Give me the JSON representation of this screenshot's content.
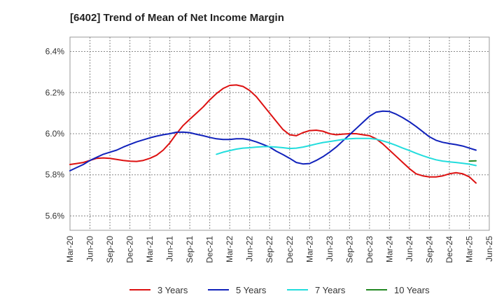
{
  "chart_data": {
    "type": "line",
    "title": "[6402]  Trend of Mean of Net Income Margin",
    "xlabel": "",
    "ylabel": "",
    "x_ticks": [
      "Mar-20",
      "Jun-20",
      "Sep-20",
      "Dec-20",
      "Mar-21",
      "Jun-21",
      "Sep-21",
      "Dec-21",
      "Mar-22",
      "Jun-22",
      "Sep-22",
      "Dec-22",
      "Mar-23",
      "Jun-23",
      "Sep-23",
      "Dec-23",
      "Mar-24",
      "Jun-24",
      "Sep-24",
      "Dec-24",
      "Mar-25",
      "Jun-25"
    ],
    "y_ticks": [
      "5.6%",
      "5.8%",
      "6.0%",
      "6.2%",
      "6.4%"
    ],
    "y_tick_values": [
      5.6,
      5.8,
      6.0,
      6.2,
      6.4
    ],
    "ylim": [
      5.53,
      6.47
    ],
    "grid": true,
    "legend_position": "bottom",
    "series": [
      {
        "name": "3 Years",
        "color": "#dd1111",
        "points": [
          [
            "Mar-20",
            5.85
          ],
          [
            "Apr-20",
            5.855
          ],
          [
            "May-20",
            5.86
          ],
          [
            "Jun-20",
            5.87
          ],
          [
            "Jul-20",
            5.88
          ],
          [
            "Aug-20",
            5.882
          ],
          [
            "Sep-20",
            5.88
          ],
          [
            "Oct-20",
            5.875
          ],
          [
            "Nov-20",
            5.87
          ],
          [
            "Dec-20",
            5.866
          ],
          [
            "Jan-21",
            5.865
          ],
          [
            "Feb-21",
            5.87
          ],
          [
            "Mar-21",
            5.88
          ],
          [
            "Apr-21",
            5.895
          ],
          [
            "May-21",
            5.92
          ],
          [
            "Jun-21",
            5.955
          ],
          [
            "Jul-21",
            6.0
          ],
          [
            "Aug-21",
            6.04
          ],
          [
            "Sep-21",
            6.07
          ],
          [
            "Oct-21",
            6.1
          ],
          [
            "Nov-21",
            6.13
          ],
          [
            "Dec-21",
            6.165
          ],
          [
            "Jan-22",
            6.195
          ],
          [
            "Feb-22",
            6.22
          ],
          [
            "Mar-22",
            6.235
          ],
          [
            "Apr-22",
            6.237
          ],
          [
            "May-22",
            6.23
          ],
          [
            "Jun-22",
            6.21
          ],
          [
            "Jul-22",
            6.18
          ],
          [
            "Aug-22",
            6.14
          ],
          [
            "Sep-22",
            6.1
          ],
          [
            "Oct-22",
            6.06
          ],
          [
            "Nov-22",
            6.02
          ],
          [
            "Dec-22",
            5.995
          ],
          [
            "Jan-23",
            5.99
          ],
          [
            "Feb-23",
            6.005
          ],
          [
            "Mar-23",
            6.015
          ],
          [
            "Apr-23",
            6.017
          ],
          [
            "May-23",
            6.012
          ],
          [
            "Jun-23",
            6.0
          ],
          [
            "Jul-23",
            5.995
          ],
          [
            "Aug-23",
            5.998
          ],
          [
            "Sep-23",
            6.0
          ],
          [
            "Oct-23",
            6.0
          ],
          [
            "Nov-23",
            5.995
          ],
          [
            "Dec-23",
            5.99
          ],
          [
            "Jan-24",
            5.975
          ],
          [
            "Feb-24",
            5.95
          ],
          [
            "Mar-24",
            5.92
          ],
          [
            "Apr-24",
            5.89
          ],
          [
            "May-24",
            5.86
          ],
          [
            "Jun-24",
            5.83
          ],
          [
            "Jul-24",
            5.805
          ],
          [
            "Aug-24",
            5.795
          ],
          [
            "Sep-24",
            5.79
          ],
          [
            "Oct-24",
            5.79
          ],
          [
            "Nov-24",
            5.795
          ],
          [
            "Dec-24",
            5.805
          ],
          [
            "Jan-25",
            5.81
          ],
          [
            "Feb-25",
            5.805
          ],
          [
            "Mar-25",
            5.79
          ],
          [
            "Apr-25",
            5.76
          ]
        ]
      },
      {
        "name": "5 Years",
        "color": "#1122bb",
        "points": [
          [
            "Mar-20",
            5.82
          ],
          [
            "Apr-20",
            5.835
          ],
          [
            "May-20",
            5.85
          ],
          [
            "Jun-20",
            5.87
          ],
          [
            "Jul-20",
            5.885
          ],
          [
            "Aug-20",
            5.9
          ],
          [
            "Sep-20",
            5.91
          ],
          [
            "Oct-20",
            5.92
          ],
          [
            "Nov-20",
            5.935
          ],
          [
            "Dec-20",
            5.948
          ],
          [
            "Jan-21",
            5.96
          ],
          [
            "Feb-21",
            5.97
          ],
          [
            "Mar-21",
            5.98
          ],
          [
            "Apr-21",
            5.988
          ],
          [
            "May-21",
            5.995
          ],
          [
            "Jun-21",
            6.0
          ],
          [
            "Jul-21",
            6.007
          ],
          [
            "Aug-21",
            6.008
          ],
          [
            "Sep-21",
            6.005
          ],
          [
            "Oct-21",
            5.997
          ],
          [
            "Nov-21",
            5.99
          ],
          [
            "Dec-21",
            5.982
          ],
          [
            "Jan-22",
            5.975
          ],
          [
            "Feb-22",
            5.972
          ],
          [
            "Mar-22",
            5.972
          ],
          [
            "Apr-22",
            5.975
          ],
          [
            "May-22",
            5.975
          ],
          [
            "Jun-22",
            5.97
          ],
          [
            "Jul-22",
            5.96
          ],
          [
            "Aug-22",
            5.948
          ],
          [
            "Sep-22",
            5.935
          ],
          [
            "Oct-22",
            5.915
          ],
          [
            "Nov-22",
            5.898
          ],
          [
            "Dec-22",
            5.88
          ],
          [
            "Jan-23",
            5.86
          ],
          [
            "Feb-23",
            5.853
          ],
          [
            "Mar-23",
            5.855
          ],
          [
            "Apr-23",
            5.87
          ],
          [
            "May-23",
            5.888
          ],
          [
            "Jun-23",
            5.91
          ],
          [
            "Jul-23",
            5.935
          ],
          [
            "Aug-23",
            5.965
          ],
          [
            "Sep-23",
            5.995
          ],
          [
            "Oct-23",
            6.025
          ],
          [
            "Nov-23",
            6.055
          ],
          [
            "Dec-23",
            6.085
          ],
          [
            "Jan-24",
            6.105
          ],
          [
            "Feb-24",
            6.11
          ],
          [
            "Mar-24",
            6.108
          ],
          [
            "Apr-24",
            6.095
          ],
          [
            "May-24",
            6.078
          ],
          [
            "Jun-24",
            6.058
          ],
          [
            "Jul-24",
            6.035
          ],
          [
            "Aug-24",
            6.01
          ],
          [
            "Sep-24",
            5.985
          ],
          [
            "Oct-24",
            5.968
          ],
          [
            "Nov-24",
            5.958
          ],
          [
            "Dec-24",
            5.952
          ],
          [
            "Jan-25",
            5.947
          ],
          [
            "Feb-25",
            5.94
          ],
          [
            "Mar-25",
            5.93
          ],
          [
            "Apr-25",
            5.92
          ]
        ]
      },
      {
        "name": "7 Years",
        "color": "#22dddd",
        "points": [
          [
            "Jan-22",
            5.9
          ],
          [
            "Feb-22",
            5.91
          ],
          [
            "Mar-22",
            5.918
          ],
          [
            "Apr-22",
            5.925
          ],
          [
            "May-22",
            5.93
          ],
          [
            "Jun-22",
            5.932
          ],
          [
            "Jul-22",
            5.935
          ],
          [
            "Aug-22",
            5.937
          ],
          [
            "Sep-22",
            5.937
          ],
          [
            "Oct-22",
            5.935
          ],
          [
            "Nov-22",
            5.932
          ],
          [
            "Dec-22",
            5.928
          ],
          [
            "Jan-23",
            5.93
          ],
          [
            "Feb-23",
            5.935
          ],
          [
            "Mar-23",
            5.942
          ],
          [
            "Apr-23",
            5.95
          ],
          [
            "May-23",
            5.957
          ],
          [
            "Jun-23",
            5.962
          ],
          [
            "Jul-23",
            5.967
          ],
          [
            "Aug-23",
            5.972
          ],
          [
            "Sep-23",
            5.975
          ],
          [
            "Oct-23",
            5.977
          ],
          [
            "Nov-23",
            5.977
          ],
          [
            "Dec-23",
            5.977
          ],
          [
            "Jan-24",
            5.973
          ],
          [
            "Feb-24",
            5.965
          ],
          [
            "Mar-24",
            5.955
          ],
          [
            "Apr-24",
            5.943
          ],
          [
            "May-24",
            5.93
          ],
          [
            "Jun-24",
            5.918
          ],
          [
            "Jul-24",
            5.905
          ],
          [
            "Aug-24",
            5.893
          ],
          [
            "Sep-24",
            5.882
          ],
          [
            "Oct-24",
            5.873
          ],
          [
            "Nov-24",
            5.867
          ],
          [
            "Dec-24",
            5.863
          ],
          [
            "Jan-25",
            5.86
          ],
          [
            "Feb-25",
            5.856
          ],
          [
            "Mar-25",
            5.852
          ],
          [
            "Apr-25",
            5.845
          ]
        ]
      },
      {
        "name": "10 Years",
        "color": "#228822",
        "points": [
          [
            "Mar-25",
            5.867
          ],
          [
            "Apr-25",
            5.868
          ]
        ]
      }
    ]
  }
}
